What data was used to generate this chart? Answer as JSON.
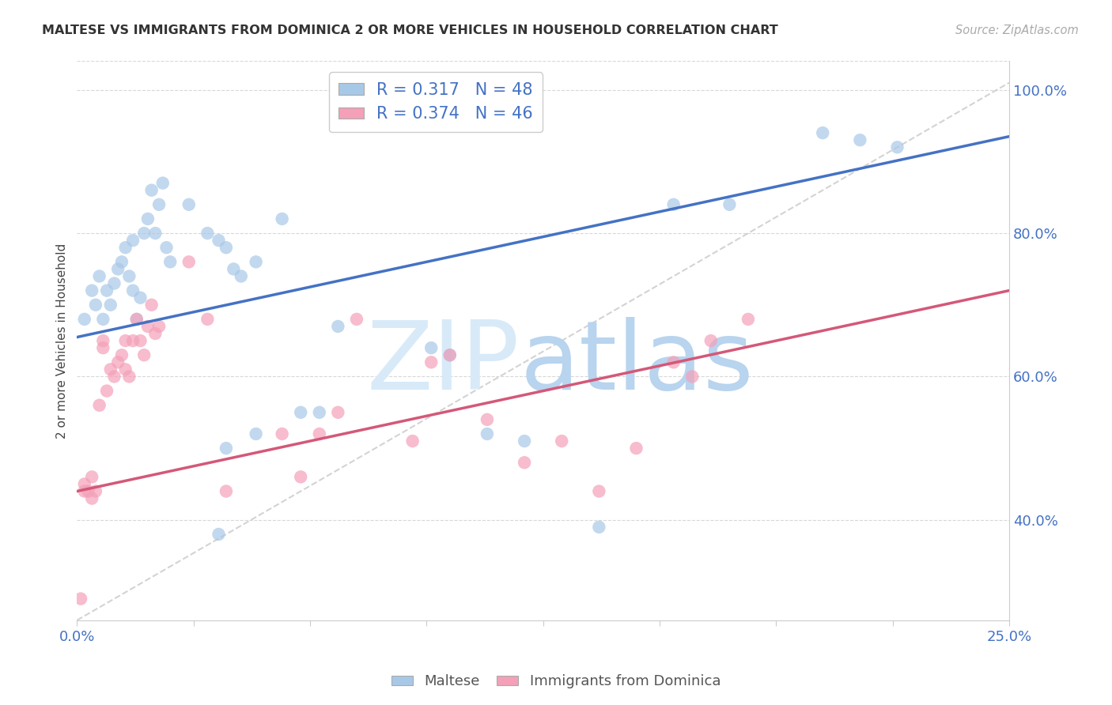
{
  "title": "MALTESE VS IMMIGRANTS FROM DOMINICA 2 OR MORE VEHICLES IN HOUSEHOLD CORRELATION CHART",
  "source": "Source: ZipAtlas.com",
  "ylabel": "2 or more Vehicles in Household",
  "xlim": [
    0.0,
    0.25
  ],
  "ylim": [
    0.26,
    1.04
  ],
  "blue_R": "0.317",
  "blue_N": "48",
  "pink_R": "0.374",
  "pink_N": "46",
  "blue_scatter_color": "#a8c8e8",
  "pink_scatter_color": "#f4a0b8",
  "blue_line_color": "#4472c4",
  "pink_line_color": "#d45878",
  "grid_color": "#d8d8d8",
  "diagonal_color": "#cccccc",
  "legend_label_blue": "Maltese",
  "legend_label_pink": "Immigrants from Dominica",
  "ytick_vals": [
    0.4,
    0.6,
    0.8,
    1.0
  ],
  "ytick_labels": [
    "40.0%",
    "60.0%",
    "80.0%",
    "100.0%"
  ],
  "xtick_vals": [
    0.0,
    0.03125,
    0.0625,
    0.09375,
    0.125,
    0.15625,
    0.1875,
    0.21875,
    0.25
  ],
  "xtick_labels": [
    "0.0%",
    "",
    "",
    "",
    "",
    "",
    "",
    "",
    "25.0%"
  ],
  "blue_line_x0": 0.0,
  "blue_line_y0": 0.655,
  "blue_line_x1": 0.25,
  "blue_line_y1": 0.935,
  "pink_line_x0": 0.0,
  "pink_line_y0": 0.44,
  "pink_line_x1": 0.25,
  "pink_line_y1": 0.72,
  "blue_x": [
    0.002,
    0.004,
    0.005,
    0.006,
    0.007,
    0.008,
    0.009,
    0.01,
    0.011,
    0.012,
    0.013,
    0.014,
    0.015,
    0.015,
    0.016,
    0.017,
    0.018,
    0.019,
    0.02,
    0.021,
    0.022,
    0.023,
    0.024,
    0.025,
    0.03,
    0.035,
    0.038,
    0.04,
    0.042,
    0.044,
    0.048,
    0.055,
    0.06,
    0.065,
    0.07,
    0.095,
    0.1,
    0.16,
    0.175,
    0.2,
    0.21,
    0.22,
    0.11,
    0.12,
    0.14,
    0.04,
    0.048,
    0.038
  ],
  "blue_y": [
    0.68,
    0.72,
    0.7,
    0.74,
    0.68,
    0.72,
    0.7,
    0.73,
    0.75,
    0.76,
    0.78,
    0.74,
    0.79,
    0.72,
    0.68,
    0.71,
    0.8,
    0.82,
    0.86,
    0.8,
    0.84,
    0.87,
    0.78,
    0.76,
    0.84,
    0.8,
    0.79,
    0.78,
    0.75,
    0.74,
    0.76,
    0.82,
    0.55,
    0.55,
    0.67,
    0.64,
    0.63,
    0.84,
    0.84,
    0.94,
    0.93,
    0.92,
    0.52,
    0.51,
    0.39,
    0.5,
    0.52,
    0.38
  ],
  "pink_x": [
    0.001,
    0.002,
    0.003,
    0.004,
    0.005,
    0.006,
    0.007,
    0.007,
    0.008,
    0.009,
    0.01,
    0.011,
    0.012,
    0.013,
    0.013,
    0.014,
    0.015,
    0.016,
    0.017,
    0.018,
    0.019,
    0.02,
    0.021,
    0.022,
    0.03,
    0.035,
    0.04,
    0.055,
    0.06,
    0.065,
    0.07,
    0.075,
    0.09,
    0.095,
    0.1,
    0.11,
    0.12,
    0.13,
    0.14,
    0.15,
    0.16,
    0.165,
    0.17,
    0.18,
    0.002,
    0.004
  ],
  "pink_y": [
    0.29,
    0.45,
    0.44,
    0.46,
    0.44,
    0.56,
    0.65,
    0.64,
    0.58,
    0.61,
    0.6,
    0.62,
    0.63,
    0.61,
    0.65,
    0.6,
    0.65,
    0.68,
    0.65,
    0.63,
    0.67,
    0.7,
    0.66,
    0.67,
    0.76,
    0.68,
    0.44,
    0.52,
    0.46,
    0.52,
    0.55,
    0.68,
    0.51,
    0.62,
    0.63,
    0.54,
    0.48,
    0.51,
    0.44,
    0.5,
    0.62,
    0.6,
    0.65,
    0.68,
    0.44,
    0.43
  ]
}
